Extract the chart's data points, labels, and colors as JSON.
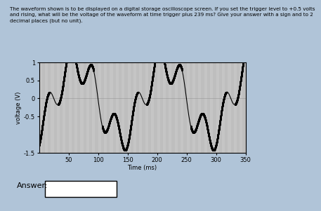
{
  "title_text": "The waveform shown is to be displayed on a digital storage oscilloscope screen. If you set the trigger level to +0.5 volts\nand rising, what will be the voltage of the waveform at time trigger plus 239 ms? Give your answer with a sign and to 2\ndecimal places (but no unit).",
  "xlabel": "Time (ms)",
  "ylabel": "voltage (V)",
  "xlim": [
    0,
    350
  ],
  "ylim": [
    -1.5,
    1.0
  ],
  "yticks": [
    -1.5,
    -0.5,
    0,
    0.5,
    1.0
  ],
  "ytick_labels": [
    "-1.5",
    "-0.5",
    "0",
    "0.5",
    "1"
  ],
  "xticks": [
    50,
    100,
    150,
    200,
    250,
    300,
    350
  ],
  "bg_color": "#bebebe",
  "outer_bg": "#b0c4d8",
  "large_amp": 1.0,
  "large_freq_hz": 6.67,
  "large_phase_deg": -60,
  "small_amp": 0.5,
  "small_freq_hz": 26.67,
  "small_phase_deg": -60,
  "t_start": 0,
  "t_end": 350,
  "num_points": 3000,
  "dot_threshold": 0.3
}
